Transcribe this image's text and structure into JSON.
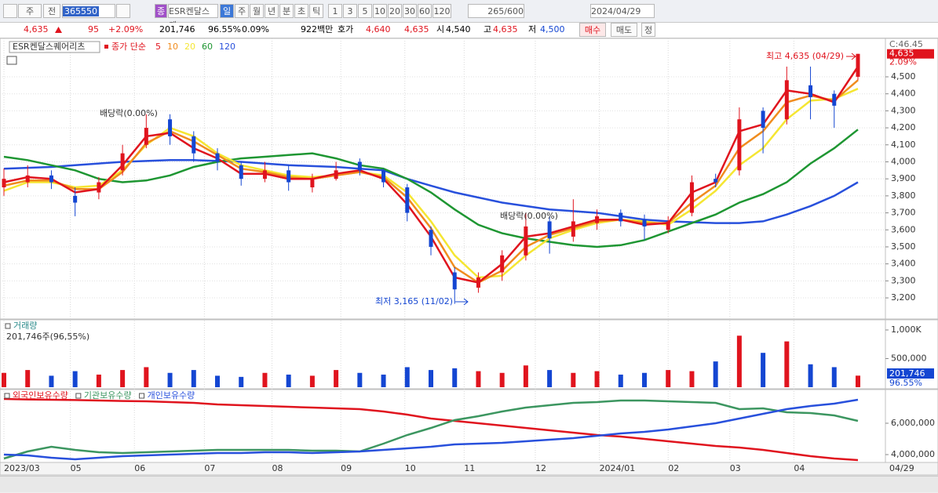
{
  "toolbar": {
    "period": [
      "주",
      "전"
    ],
    "code": "365550",
    "name_badge": "종",
    "name": "ESR켄달스퀘",
    "intervals": [
      "일",
      "주",
      "월",
      "년",
      "분",
      "초",
      "틱"
    ],
    "units": [
      "1",
      "3",
      "5",
      "10",
      "20",
      "30",
      "60",
      "120"
    ],
    "count": "265/600",
    "date": "2024/04/29"
  },
  "quote": {
    "price": "4,635",
    "change": "95",
    "change_pct": "+2.09%",
    "volume": "201,746",
    "volume_ratio": "96.55%",
    "turnover": "0.09%",
    "amount": "922백만",
    "ask_label": "호가",
    "ask": "4,640",
    "bid": "4,635",
    "open_label": "시",
    "open": "4,540",
    "high_label": "고",
    "high": "4,635",
    "low_label": "저",
    "low": "4,500",
    "buy": "매수",
    "sell": "매도",
    "edit": "정"
  },
  "chart_data": [
    {
      "type": "candlestick",
      "title": "ESR켄달스퀘어리츠",
      "subtitle": "종가 단순",
      "up_color": "#e0141e",
      "down_color": "#1446d2",
      "grid": true,
      "xlim": [
        0,
        36
      ],
      "xticks": [
        {
          "value": 0,
          "label": "2023/03"
        },
        {
          "value": 2.8,
          "label": "05"
        },
        {
          "value": 5.5,
          "label": "06"
        },
        {
          "value": 8.45,
          "label": "07"
        },
        {
          "value": 11.3,
          "label": "08"
        },
        {
          "value": 14.2,
          "label": "09"
        },
        {
          "value": 16.9,
          "label": "10"
        },
        {
          "value": 19.4,
          "label": "11"
        },
        {
          "value": 22.4,
          "label": "12"
        },
        {
          "value": 25.1,
          "label": "2024/01"
        },
        {
          "value": 28.0,
          "label": "02"
        },
        {
          "value": 30.6,
          "label": "03"
        },
        {
          "value": 33.3,
          "label": "04"
        }
      ],
      "last_date_label": "04/29",
      "ylim": [
        3085,
        4712
      ],
      "yticks": [
        {
          "value": 3200,
          "label": "3,200"
        },
        {
          "value": 3300,
          "label": "3,300"
        },
        {
          "value": 3400,
          "label": "3,400"
        },
        {
          "value": 3500,
          "label": "3,500"
        },
        {
          "value": 3600,
          "label": "3,600"
        },
        {
          "value": 3700,
          "label": "3,700"
        },
        {
          "value": 3800,
          "label": "3,800"
        },
        {
          "value": 3900,
          "label": "3,900"
        },
        {
          "value": 4000,
          "label": "4,000"
        },
        {
          "value": 4100,
          "label": "4,100"
        },
        {
          "value": 4200,
          "label": "4,200"
        },
        {
          "value": 4300,
          "label": "4,300"
        },
        {
          "value": 4400,
          "label": "4,400"
        },
        {
          "value": 4500,
          "label": "4,500"
        }
      ],
      "axis_top_label": "C:46.45",
      "current_label": "4,635",
      "current_change": "2.09%",
      "open": [
        3850,
        3880,
        3920,
        3800,
        3820,
        3950,
        4100,
        4250,
        4150,
        4050,
        3980,
        3900,
        3950,
        3850,
        3900,
        4000,
        3950,
        3850,
        3600,
        3350,
        3260,
        3350,
        3450,
        3650,
        3560,
        3640,
        3700,
        3660,
        3600,
        3700,
        3900,
        3950,
        4300,
        4250,
        4450,
        4400,
        4500
      ],
      "high": [
        3960,
        3980,
        3950,
        3850,
        3910,
        4100,
        4280,
        4280,
        4180,
        4080,
        4000,
        4000,
        3980,
        3930,
        4000,
        4020,
        3960,
        3870,
        3620,
        3380,
        3350,
        3480,
        3700,
        3680,
        3780,
        3720,
        3720,
        3690,
        3680,
        3920,
        3930,
        4320,
        4320,
        4560,
        4560,
        4420,
        4635
      ],
      "low": [
        3800,
        3850,
        3840,
        3680,
        3780,
        3920,
        4080,
        4100,
        4000,
        3950,
        3860,
        3880,
        3830,
        3820,
        3890,
        3920,
        3850,
        3650,
        3450,
        3165,
        3230,
        3300,
        3420,
        3460,
        3530,
        3600,
        3620,
        3540,
        3580,
        3680,
        3850,
        3920,
        4050,
        4220,
        4250,
        4200,
        4480
      ],
      "close": [
        3900,
        3920,
        3880,
        3760,
        3880,
        4050,
        4200,
        4150,
        4050,
        4000,
        3900,
        3950,
        3880,
        3900,
        3950,
        3950,
        3880,
        3700,
        3500,
        3250,
        3320,
        3450,
        3620,
        3550,
        3650,
        3680,
        3650,
        3620,
        3650,
        3880,
        3880,
        4250,
        4200,
        4480,
        4380,
        4330,
        4635
      ],
      "series": [
        {
          "name": "5",
          "color": "#e0141e",
          "values": [
            3880,
            3910,
            3900,
            3820,
            3840,
            3980,
            4150,
            4170,
            4080,
            4020,
            3930,
            3930,
            3900,
            3900,
            3930,
            3950,
            3900,
            3750,
            3560,
            3320,
            3290,
            3400,
            3560,
            3580,
            3620,
            3660,
            3660,
            3630,
            3640,
            3820,
            3880,
            4180,
            4220,
            4420,
            4400,
            4350,
            4560
          ]
        },
        {
          "name": "10",
          "color": "#f08c1e",
          "values": [
            3860,
            3890,
            3890,
            3840,
            3840,
            3940,
            4110,
            4180,
            4120,
            4040,
            3960,
            3940,
            3910,
            3900,
            3920,
            3940,
            3910,
            3790,
            3610,
            3380,
            3290,
            3360,
            3500,
            3570,
            3610,
            3650,
            3660,
            3640,
            3640,
            3760,
            3860,
            4080,
            4180,
            4350,
            4390,
            4360,
            4480
          ]
        },
        {
          "name": "20",
          "color": "#f5e632",
          "values": [
            3830,
            3880,
            3880,
            3850,
            3860,
            3950,
            4100,
            4200,
            4150,
            4050,
            3980,
            3950,
            3920,
            3910,
            3920,
            3940,
            3920,
            3820,
            3650,
            3450,
            3320,
            3330,
            3450,
            3550,
            3600,
            3640,
            3660,
            3650,
            3630,
            3720,
            3830,
            3980,
            4080,
            4250,
            4360,
            4370,
            4430
          ]
        },
        {
          "name": "60",
          "color": "#1e9632",
          "values": [
            4030,
            4010,
            3980,
            3950,
            3900,
            3880,
            3890,
            3920,
            3970,
            4000,
            4020,
            4030,
            4040,
            4050,
            4020,
            3980,
            3960,
            3900,
            3820,
            3720,
            3630,
            3580,
            3550,
            3530,
            3510,
            3500,
            3510,
            3540,
            3590,
            3640,
            3690,
            3760,
            3810,
            3880,
            3990,
            4080,
            4190
          ]
        },
        {
          "name": "120",
          "color": "#2850dc",
          "values": [
            3960,
            3965,
            3970,
            3980,
            3990,
            4000,
            4005,
            4010,
            4010,
            4005,
            4000,
            3990,
            3980,
            3975,
            3970,
            3960,
            3950,
            3900,
            3860,
            3820,
            3790,
            3760,
            3740,
            3720,
            3710,
            3700,
            3680,
            3660,
            3650,
            3645,
            3640,
            3640,
            3650,
            3690,
            3740,
            3800,
            3880
          ]
        }
      ],
      "annotations": [
        {
          "text": "배당락(0.00%)"
        },
        {
          "text": "배당락(0.00%)"
        },
        {
          "text": "최고 4,635 (04/29)"
        },
        {
          "text": "최저 3,165 (11/02)"
        }
      ]
    },
    {
      "type": "bar",
      "title": "거래량",
      "subtitle": "201,746주(96,55%)",
      "ylim": [
        0,
        1123000
      ],
      "yticks": [
        {
          "value": 1000000,
          "label": "1,000K"
        },
        {
          "value": 500000,
          "label": "500,000"
        }
      ],
      "current_label": "201,746",
      "ratio_label": "96.55%",
      "values": [
        250000,
        300000,
        200000,
        280000,
        220000,
        300000,
        350000,
        250000,
        300000,
        200000,
        180000,
        250000,
        220000,
        200000,
        300000,
        250000,
        220000,
        350000,
        300000,
        330000,
        280000,
        250000,
        380000,
        300000,
        250000,
        280000,
        220000,
        250000,
        300000,
        280000,
        450000,
        900000,
        600000,
        800000,
        400000,
        350000,
        201746
      ]
    },
    {
      "type": "line",
      "ylim": [
        3600000,
        8000000
      ],
      "yticks": [
        {
          "value": 6000000,
          "label": "6,000,000"
        },
        {
          "value": 4000000,
          "label": "4,000,000"
        }
      ],
      "series": [
        {
          "name": "외국인보유수량",
          "color": "#e0141e",
          "values": [
            7550000,
            7520000,
            7500000,
            7480000,
            7450000,
            7420000,
            7400000,
            7350000,
            7300000,
            7200000,
            7150000,
            7100000,
            7050000,
            7000000,
            6950000,
            6900000,
            6750000,
            6550000,
            6300000,
            6150000,
            6000000,
            5850000,
            5700000,
            5550000,
            5400000,
            5250000,
            5150000,
            5000000,
            4850000,
            4700000,
            4550000,
            4450000,
            4300000,
            4100000,
            3900000,
            3750000,
            3650000
          ]
        },
        {
          "name": "기관보유수량",
          "color": "#3c9660",
          "values": [
            3750000,
            4200000,
            4500000,
            4300000,
            4150000,
            4100000,
            4150000,
            4200000,
            4250000,
            4300000,
            4300000,
            4300000,
            4300000,
            4250000,
            4250000,
            4200000,
            4700000,
            5250000,
            5700000,
            6200000,
            6450000,
            6750000,
            7000000,
            7150000,
            7300000,
            7350000,
            7450000,
            7450000,
            7400000,
            7350000,
            7300000,
            6900000,
            6950000,
            6700000,
            6650000,
            6500000,
            6150000
          ]
        },
        {
          "name": "개인보유수량",
          "color": "#2850dc",
          "values": [
            4000000,
            3950000,
            3800000,
            3700000,
            3800000,
            3900000,
            3950000,
            4000000,
            4050000,
            4100000,
            4100000,
            4150000,
            4150000,
            4100000,
            4150000,
            4200000,
            4300000,
            4400000,
            4500000,
            4650000,
            4700000,
            4750000,
            4850000,
            4950000,
            5050000,
            5200000,
            5350000,
            5450000,
            5600000,
            5800000,
            6000000,
            6300000,
            6600000,
            6900000,
            7100000,
            7250000,
            7500000
          ]
        }
      ]
    }
  ]
}
